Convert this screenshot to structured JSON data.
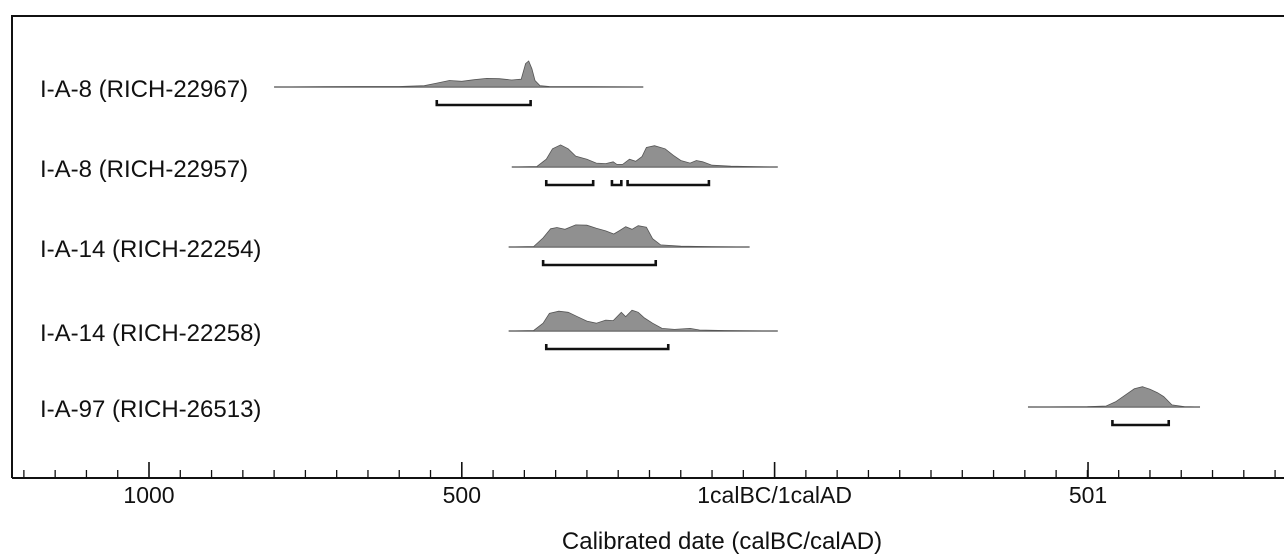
{
  "chart_data": {
    "type": "area",
    "title": "",
    "xlabel": "Calibrated date (calBC/calAD)",
    "ylabel": "",
    "x_axis_ticks": [
      {
        "label": "1000",
        "year": -1000
      },
      {
        "label": "500",
        "year": -500
      },
      {
        "label": "1calBC/1calAD",
        "year": 0
      },
      {
        "label": "501",
        "year": 501
      }
    ],
    "xlim": [
      -1220,
      800
    ],
    "minor_tick_interval": 50,
    "grid": false,
    "legend": "none",
    "series_color": "#909090",
    "samples": [
      {
        "name": "I-A-8 (RICH-22967)",
        "range_start": -800,
        "range_end": -210,
        "ranges_95": [
          [
            -540,
            -390
          ]
        ],
        "density": [
          [
            -800,
            0
          ],
          [
            -720,
            0.01
          ],
          [
            -660,
            0.02
          ],
          [
            -600,
            0.02
          ],
          [
            -560,
            0.05
          ],
          [
            -540,
            0.15
          ],
          [
            -520,
            0.25
          ],
          [
            -500,
            0.22
          ],
          [
            -480,
            0.28
          ],
          [
            -460,
            0.33
          ],
          [
            -440,
            0.32
          ],
          [
            -420,
            0.27
          ],
          [
            -405,
            0.3
          ],
          [
            -398,
            0.9
          ],
          [
            -393,
            1.0
          ],
          [
            -388,
            0.7
          ],
          [
            -383,
            0.25
          ],
          [
            -375,
            0.05
          ],
          [
            -360,
            0.02
          ],
          [
            -300,
            0.01
          ],
          [
            -210,
            0
          ]
        ]
      },
      {
        "name": "I-A-8 (RICH-22957)",
        "range_start": -420,
        "range_end": 5,
        "ranges_95": [
          [
            -365,
            -290
          ],
          [
            -260,
            -245
          ],
          [
            -235,
            -105
          ]
        ],
        "density": [
          [
            -420,
            0
          ],
          [
            -380,
            0.02
          ],
          [
            -365,
            0.3
          ],
          [
            -355,
            0.7
          ],
          [
            -342,
            0.85
          ],
          [
            -330,
            0.7
          ],
          [
            -318,
            0.42
          ],
          [
            -300,
            0.3
          ],
          [
            -285,
            0.15
          ],
          [
            -270,
            0.13
          ],
          [
            -258,
            0.2
          ],
          [
            -252,
            0.1
          ],
          [
            -243,
            0.1
          ],
          [
            -232,
            0.3
          ],
          [
            -222,
            0.22
          ],
          [
            -212,
            0.4
          ],
          [
            -205,
            0.75
          ],
          [
            -192,
            0.82
          ],
          [
            -175,
            0.7
          ],
          [
            -162,
            0.45
          ],
          [
            -150,
            0.25
          ],
          [
            -135,
            0.15
          ],
          [
            -125,
            0.25
          ],
          [
            -115,
            0.2
          ],
          [
            -100,
            0.07
          ],
          [
            -70,
            0.03
          ],
          [
            -30,
            0.01
          ],
          [
            5,
            0
          ]
        ]
      },
      {
        "name": "I-A-14 (RICH-22254)",
        "range_start": -425,
        "range_end": -40,
        "ranges_95": [
          [
            -370,
            -190
          ]
        ],
        "density": [
          [
            -425,
            0
          ],
          [
            -385,
            0.02
          ],
          [
            -370,
            0.35
          ],
          [
            -358,
            0.7
          ],
          [
            -348,
            0.75
          ],
          [
            -335,
            0.68
          ],
          [
            -318,
            0.85
          ],
          [
            -300,
            0.84
          ],
          [
            -285,
            0.72
          ],
          [
            -270,
            0.62
          ],
          [
            -257,
            0.5
          ],
          [
            -248,
            0.63
          ],
          [
            -238,
            0.78
          ],
          [
            -228,
            0.68
          ],
          [
            -218,
            0.82
          ],
          [
            -205,
            0.76
          ],
          [
            -195,
            0.32
          ],
          [
            -182,
            0.08
          ],
          [
            -150,
            0.03
          ],
          [
            -100,
            0.01
          ],
          [
            -40,
            0
          ]
        ]
      },
      {
        "name": "I-A-14 (RICH-22258)",
        "range_start": -425,
        "range_end": 5,
        "ranges_95": [
          [
            -365,
            -170
          ]
        ],
        "density": [
          [
            -425,
            0
          ],
          [
            -385,
            0.02
          ],
          [
            -370,
            0.3
          ],
          [
            -360,
            0.68
          ],
          [
            -345,
            0.76
          ],
          [
            -330,
            0.72
          ],
          [
            -315,
            0.55
          ],
          [
            -300,
            0.38
          ],
          [
            -285,
            0.3
          ],
          [
            -270,
            0.42
          ],
          [
            -258,
            0.4
          ],
          [
            -245,
            0.72
          ],
          [
            -238,
            0.55
          ],
          [
            -228,
            0.8
          ],
          [
            -218,
            0.72
          ],
          [
            -208,
            0.5
          ],
          [
            -195,
            0.3
          ],
          [
            -180,
            0.1
          ],
          [
            -160,
            0.06
          ],
          [
            -135,
            0.1
          ],
          [
            -120,
            0.04
          ],
          [
            -80,
            0.02
          ],
          [
            5,
            0
          ]
        ]
      },
      {
        "name": "I-A-97 (RICH-26513)",
        "range_start": 405,
        "range_end": 680,
        "ranges_95": [
          [
            540,
            630
          ]
        ],
        "density": [
          [
            405,
            0
          ],
          [
            500,
            0.01
          ],
          [
            530,
            0.04
          ],
          [
            545,
            0.2
          ],
          [
            560,
            0.45
          ],
          [
            575,
            0.7
          ],
          [
            588,
            0.78
          ],
          [
            600,
            0.68
          ],
          [
            612,
            0.55
          ],
          [
            622,
            0.4
          ],
          [
            635,
            0.08
          ],
          [
            655,
            0.01
          ],
          [
            680,
            0
          ]
        ]
      }
    ]
  }
}
